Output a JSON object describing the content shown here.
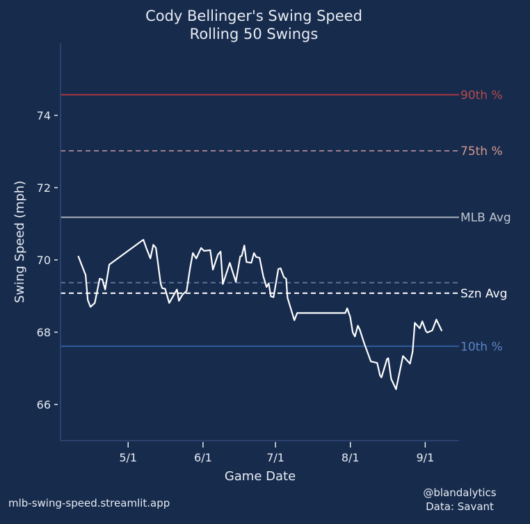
{
  "colors": {
    "background": "#172b4d",
    "spine": "#34497a",
    "text": "#e8ecf2",
    "series": "#ffffff",
    "p90": "#a5393f",
    "p90_label": "#b84a4e",
    "p75": "#a0808a",
    "p75_label": "#d69a90",
    "mlb_avg": "#aab0ba",
    "mlb_avg_label": "#c0c6cf",
    "szn_avg": "#ffffff",
    "szn_ref2": "#5d7399",
    "p10": "#2f5fa0",
    "p10_label": "#5a86c2"
  },
  "footer": {
    "site": "mlb-swing-speed.streamlit.app",
    "handle": "@blandalytics",
    "source": "Data: Savant"
  },
  "chart_data": {
    "type": "line",
    "title": "Cody Bellinger's Swing Speed",
    "subtitle": "Rolling 50 Swings",
    "xlabel": "Game Date",
    "ylabel": "Swing Speed (mph)",
    "x_unit": "days since 4/1",
    "xlim": [
      2,
      167
    ],
    "ylim": [
      65,
      76
    ],
    "grid": false,
    "xticks": [
      {
        "value": 30,
        "label": "5/1"
      },
      {
        "value": 61,
        "label": "6/1"
      },
      {
        "value": 91,
        "label": "7/1"
      },
      {
        "value": 122,
        "label": "8/1"
      },
      {
        "value": 153,
        "label": "9/1"
      }
    ],
    "yticks": [
      {
        "value": 66,
        "label": "66"
      },
      {
        "value": 68,
        "label": "68"
      },
      {
        "value": 70,
        "label": "70"
      },
      {
        "value": 72,
        "label": "72"
      },
      {
        "value": 74,
        "label": "74"
      }
    ],
    "reference_lines": [
      {
        "name": "90th",
        "label": "90th %",
        "value": 74.57,
        "style": "solid",
        "color_key": "p90",
        "label_color_key": "p90_label"
      },
      {
        "name": "75th",
        "label": "75th %",
        "value": 73.02,
        "style": "dashed",
        "color_key": "p75",
        "label_color_key": "p75_label"
      },
      {
        "name": "mlb-avg",
        "label": "MLB Avg",
        "value": 71.18,
        "style": "solid",
        "color_key": "mlb_avg",
        "label_color_key": "mlb_avg_label"
      },
      {
        "name": "szn-ref",
        "label": "",
        "value": 69.37,
        "style": "dashed",
        "color_key": "szn_ref2",
        "label_color_key": "szn_ref2"
      },
      {
        "name": "szn-avg",
        "label": "Szn Avg",
        "value": 69.08,
        "style": "dashed",
        "color_key": "szn_avg",
        "label_color_key": "szn_avg"
      },
      {
        "name": "10th",
        "label": "10th %",
        "value": 67.61,
        "style": "solid",
        "color_key": "p10",
        "label_color_key": "p10_label"
      }
    ],
    "series": [
      {
        "name": "Rolling 50 Swings",
        "x": [
          9.3,
          12.4,
          13.3,
          14.4,
          16.2,
          18.2,
          19.3,
          20.5,
          22.2,
          36.3,
          37.5,
          39.2,
          40.4,
          41.5,
          43.5,
          44.1,
          45.3,
          47.0,
          50.2,
          51.0,
          52.5,
          54.2,
          55.6,
          56.8,
          58.2,
          60.2,
          61.4,
          64.0,
          65.1,
          67.2,
          68.3,
          69.2,
          72.1,
          74.6,
          76.4,
          77.0,
          78.1,
          79.0,
          81.0,
          82.1,
          83.0,
          84.4,
          85.9,
          87.3,
          88.2,
          89.1,
          90.2,
          92.2,
          93.1,
          94.5,
          95.4,
          96.0,
          98.8,
          100.0,
          119.9,
          120.7,
          121.9,
          123.0,
          123.9,
          125.1,
          125.9,
          127.7,
          130.5,
          133.1,
          134.3,
          134.9,
          137.2,
          137.7,
          138.9,
          140.9,
          142.1,
          143.8,
          146.7,
          147.8,
          148.7,
          150.7,
          151.8,
          153.3,
          153.9,
          155.9,
          157.6,
          159.9
        ],
        "y": [
          70.11,
          69.58,
          68.89,
          68.7,
          68.81,
          69.48,
          69.46,
          69.18,
          69.87,
          70.56,
          70.33,
          70.04,
          70.42,
          70.33,
          69.33,
          69.22,
          69.2,
          68.81,
          69.18,
          68.87,
          69.04,
          69.14,
          69.75,
          70.19,
          70.04,
          70.33,
          70.25,
          70.27,
          69.73,
          70.15,
          70.23,
          69.33,
          69.92,
          69.39,
          70.1,
          70.11,
          70.4,
          69.94,
          69.92,
          70.19,
          70.08,
          70.06,
          69.56,
          69.25,
          69.35,
          68.99,
          68.97,
          69.75,
          69.77,
          69.52,
          69.48,
          68.95,
          68.33,
          68.53,
          68.53,
          68.66,
          68.43,
          67.99,
          67.88,
          68.18,
          68.07,
          67.7,
          67.19,
          67.15,
          66.8,
          66.75,
          67.26,
          67.28,
          66.71,
          66.42,
          66.8,
          67.34,
          67.13,
          67.47,
          68.26,
          68.11,
          68.3,
          68.03,
          67.99,
          68.05,
          68.35,
          68.03
        ]
      }
    ]
  }
}
